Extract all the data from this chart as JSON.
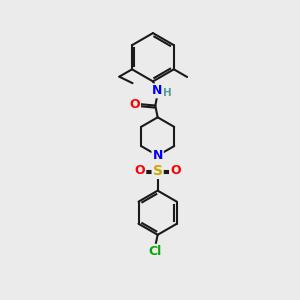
{
  "bg_color": "#ebebeb",
  "bond_color": "#1a1a1a",
  "bond_width": 1.5,
  "atom_colors": {
    "N": "#0000ff",
    "O": "#ff0000",
    "S": "#ccaa00",
    "Cl": "#00aa00",
    "H": "#5a9a9a",
    "C": "#1a1a1a"
  },
  "font_size": 8.5,
  "title": ""
}
